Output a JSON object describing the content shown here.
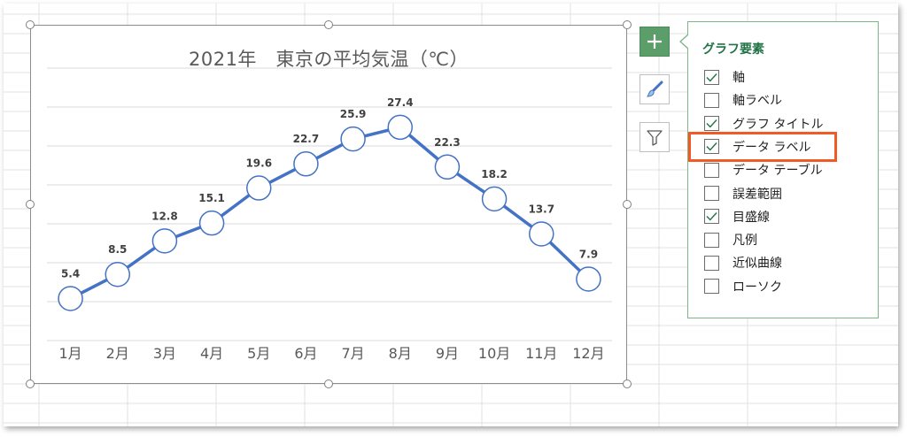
{
  "chart_data": {
    "type": "line",
    "title": "2021年　東京の平均気温（℃）",
    "categories": [
      "1月",
      "2月",
      "3月",
      "4月",
      "5月",
      "6月",
      "7月",
      "8月",
      "9月",
      "10月",
      "11月",
      "12月"
    ],
    "series": [
      {
        "values": [
          5.4,
          8.5,
          12.8,
          15.1,
          19.6,
          22.7,
          25.9,
          27.4,
          22.3,
          18.2,
          13.7,
          7.9
        ]
      }
    ],
    "data_labels": [
      "5.4",
      "8.5",
      "12.8",
      "15.1",
      "19.6",
      "22.7",
      "25.9",
      "27.4",
      "22.3",
      "18.2",
      "13.7",
      "7.9"
    ],
    "ylim": [
      0,
      35
    ],
    "y_axis_visible": false,
    "grid": true,
    "legend": "none",
    "line_color": "#4472c4",
    "marker": "open-circle"
  },
  "side_buttons": [
    {
      "name": "chart-elements-button",
      "icon": "plus-icon"
    },
    {
      "name": "chart-styles-button",
      "icon": "paintbrush-icon"
    },
    {
      "name": "chart-filters-button",
      "icon": "filter-icon"
    }
  ],
  "panel": {
    "title": "グラフ要素",
    "items": [
      {
        "label": "軸",
        "checked": true
      },
      {
        "label": "軸ラベル",
        "checked": false
      },
      {
        "label": "グラフ タイトル",
        "checked": true
      },
      {
        "label": "データ ラベル",
        "checked": true
      },
      {
        "label": "データ テーブル",
        "checked": false
      },
      {
        "label": "誤差範囲",
        "checked": false
      },
      {
        "label": "目盛線",
        "checked": true
      },
      {
        "label": "凡例",
        "checked": false
      },
      {
        "label": "近似曲線",
        "checked": false
      },
      {
        "label": "ローソク",
        "checked": false
      }
    ]
  },
  "colors": {
    "accent": "#217346",
    "highlight": "#f15a24",
    "series": "#4472c4",
    "text": "#595959"
  }
}
